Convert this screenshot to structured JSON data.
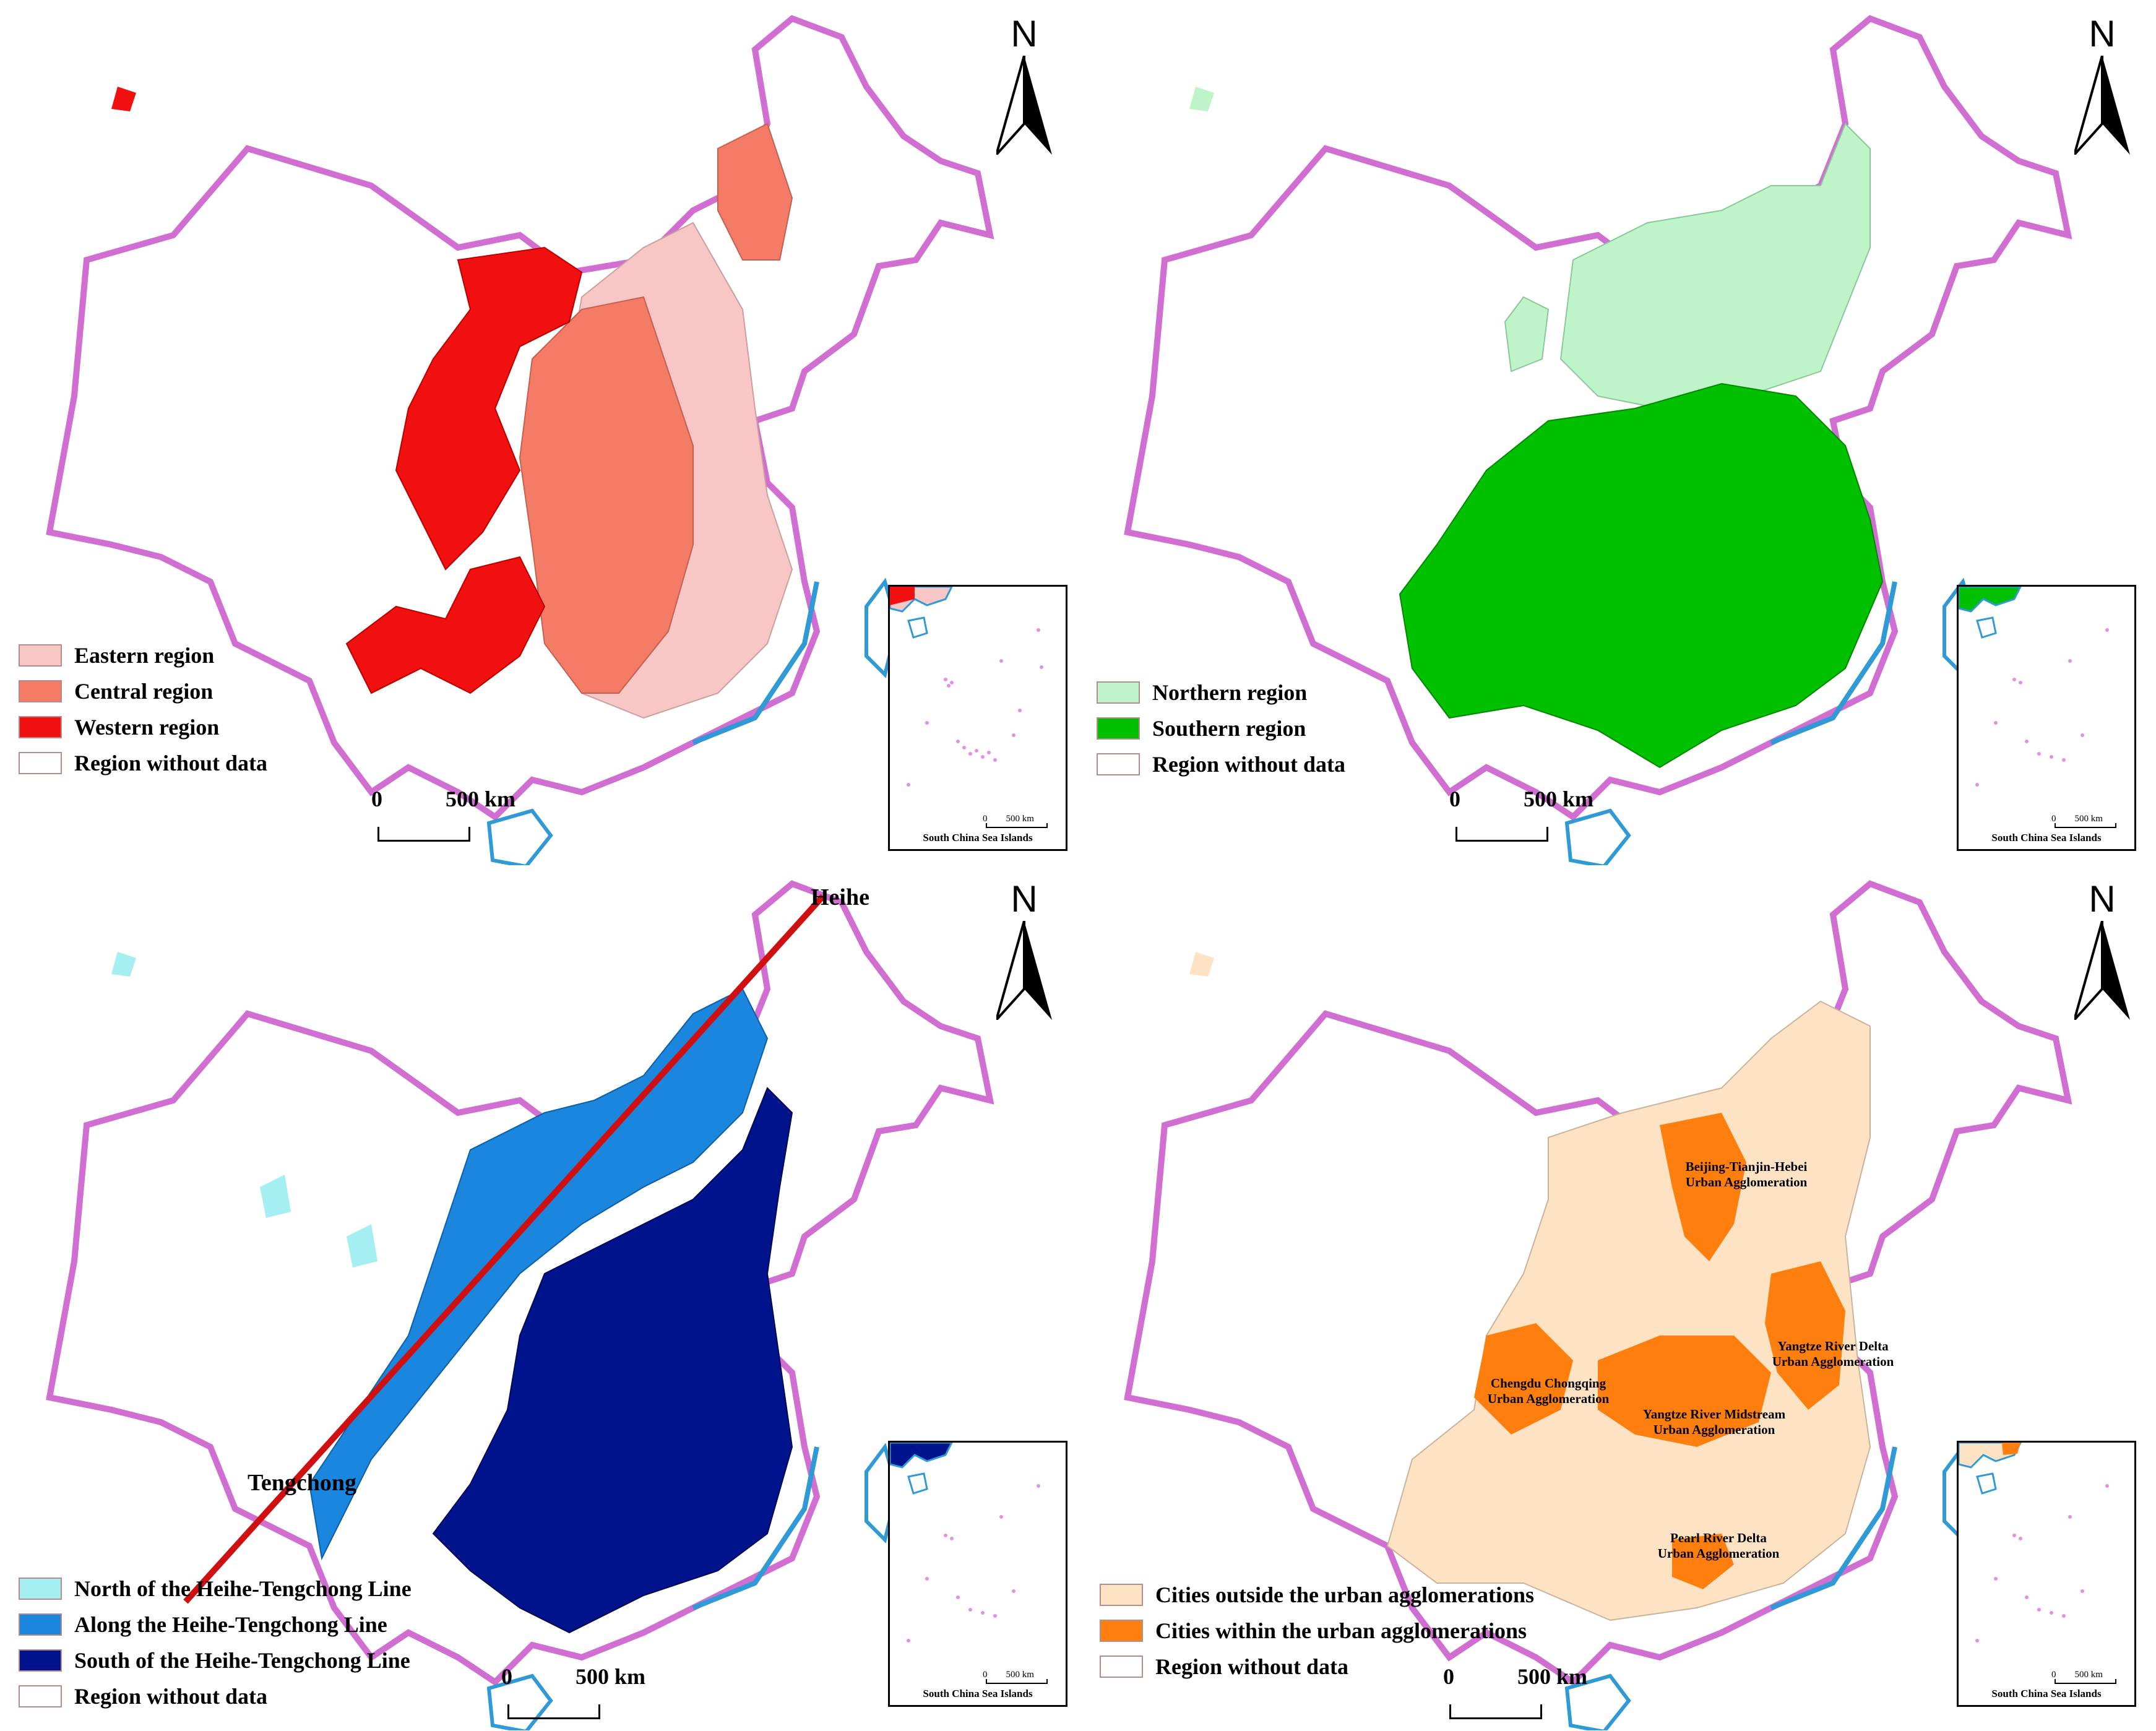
{
  "north_label": "N",
  "distance": {
    "zero": "0",
    "label": "500 km"
  },
  "inset": {
    "label": "South China Sea Islands",
    "zero": "0",
    "dist": "500 km"
  },
  "colors": {
    "border": "#d16ed1",
    "coast": "#2f9ad6",
    "nodata": "#ffffff"
  },
  "panels": [
    {
      "id": "east-central-west",
      "legend": [
        {
          "label": "Eastern region",
          "color": "#f9c6c6"
        },
        {
          "label": "Central region",
          "color": "#f47c66"
        },
        {
          "label": "Western region",
          "color": "#f01010"
        },
        {
          "label": "Region without data",
          "color": "#ffffff"
        }
      ]
    },
    {
      "id": "north-south",
      "legend": [
        {
          "label": "Northern region",
          "color": "#bff4c9"
        },
        {
          "label": "Southern region",
          "color": "#00c000"
        },
        {
          "label": "Region without data",
          "color": "#ffffff"
        }
      ]
    },
    {
      "id": "heihe-tengchong",
      "legend": [
        {
          "label": "North of the Heihe-Tengchong Line",
          "color": "#a5eef2"
        },
        {
          "label": "Along the Heihe-Tengchong Line",
          "color": "#1a86de"
        },
        {
          "label": "South of the Heihe-Tengchong Line",
          "color": "#00138c"
        },
        {
          "label": "Region without data",
          "color": "#ffffff"
        }
      ],
      "labels": {
        "heihe": "Heihe",
        "tengchong": "Tengchong"
      }
    },
    {
      "id": "urban-agglomerations",
      "legend": [
        {
          "label": "Cities outside the urban agglomerations",
          "color": "#fde3c4"
        },
        {
          "label": "Cities within the urban agglomerations",
          "color": "#ff7f0e"
        },
        {
          "label": "Region without data",
          "color": "#ffffff"
        }
      ],
      "agglomerations": [
        {
          "line1": "Beijing-Tianjin-Hebei",
          "line2": "Urban Agglomeration"
        },
        {
          "line1": "Yangtze River Delta",
          "line2": "Urban Agglomeration"
        },
        {
          "line1": "Chengdu Chongqing",
          "line2": "Urban Agglomeration"
        },
        {
          "line1": "Yangtze River Midstream",
          "line2": "Urban Agglomeration"
        },
        {
          "line1": "Pearl River Delta",
          "line2": "Urban Agglomeration"
        }
      ]
    }
  ]
}
